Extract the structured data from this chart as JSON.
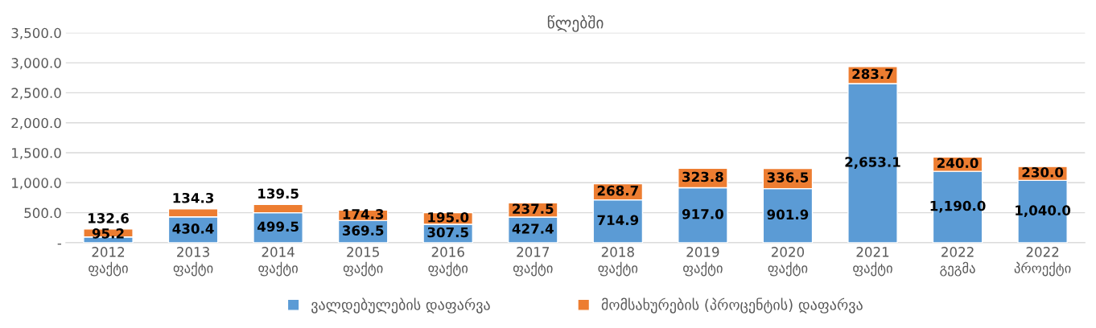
{
  "chart_data": {
    "type": "bar",
    "title": "წლებში",
    "stacked": true,
    "data_labels": true,
    "grid": "y",
    "legend": "bottom",
    "categories": [
      "2012\nფაქტი",
      "2013\nფაქტი",
      "2014\nფაქტი",
      "2015\nფაქტი",
      "2016\nფაქტი",
      "2017\nფაქტი",
      "2018\nფაქტი",
      "2019\nფაქტი",
      "2020\nფაქტი",
      "2021\nფაქტი",
      "2022\nგეგმა",
      "2022\nპროექტი"
    ],
    "series": [
      {
        "name": "ვალდებულების დაფარვა",
        "color": "#5b9bd5",
        "values": [
          95.2,
          430.4,
          499.5,
          369.5,
          307.5,
          427.4,
          714.9,
          917.0,
          901.9,
          2653.1,
          1190.0,
          1040.0
        ],
        "value_labels": [
          "95.2",
          "430.4",
          "499.5",
          "369.5",
          "307.5",
          "427.4",
          "714.9",
          "917.0",
          "901.9",
          "2,653.1",
          "1,190.0",
          "1,040.0"
        ]
      },
      {
        "name": "მომსახურების (პროცენტის) დაფარვა",
        "color": "#ed7d31",
        "values": [
          132.6,
          134.3,
          139.5,
          174.3,
          195.0,
          237.5,
          268.7,
          323.8,
          336.5,
          283.7,
          240.0,
          230.0
        ],
        "value_labels": [
          "132.6",
          "134.3",
          "139.5",
          "174.3",
          "195.0",
          "237.5",
          "268.7",
          "323.8",
          "336.5",
          "283.7",
          "240.0",
          "230.0"
        ]
      }
    ],
    "ylim": [
      0,
      3500
    ],
    "yticks": [
      {
        "value": 0,
        "label": "-"
      },
      {
        "value": 500,
        "label": "500.0"
      },
      {
        "value": 1000,
        "label": "1,000.0"
      },
      {
        "value": 1500,
        "label": "1,500.0"
      },
      {
        "value": 2000,
        "label": "2,000.0"
      },
      {
        "value": 2500,
        "label": "2,500.0"
      },
      {
        "value": 3000,
        "label": "3,000.0"
      },
      {
        "value": 3500,
        "label": "3,500.0"
      }
    ]
  }
}
